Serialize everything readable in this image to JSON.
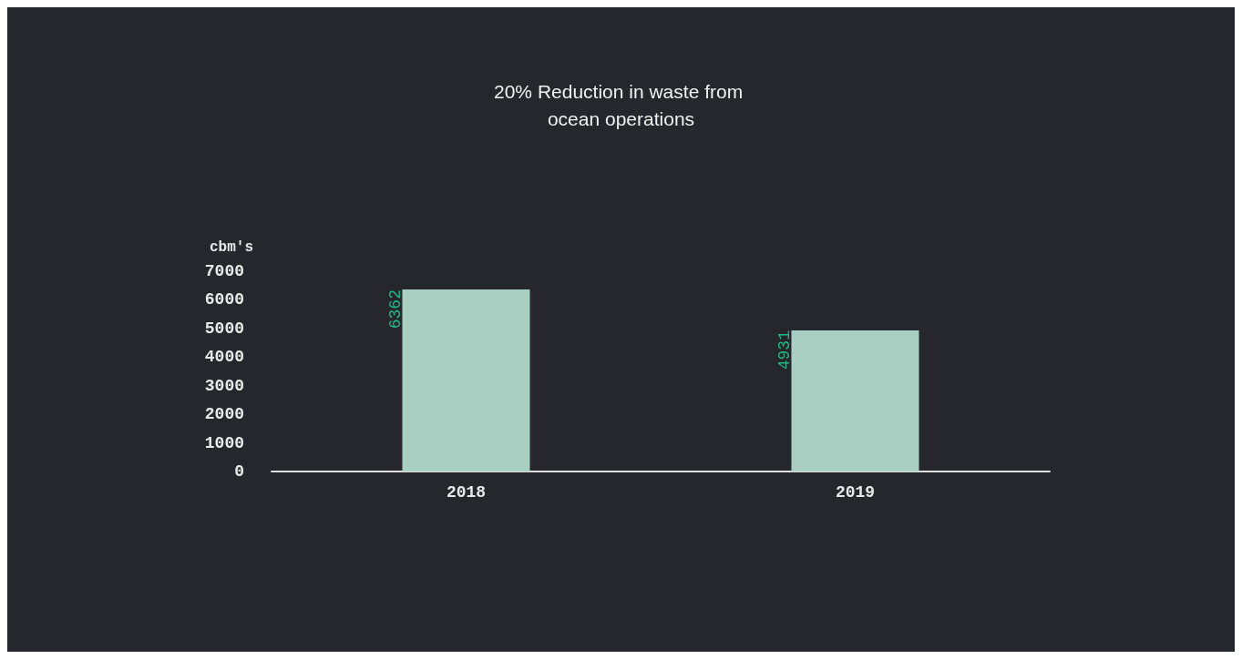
{
  "chart_data": {
    "type": "bar",
    "title": "20% Reduction in waste from ocean operations",
    "ylabel": "cbm's",
    "categories": [
      "2018",
      "2019"
    ],
    "values": [
      6362,
      4931
    ],
    "color": "#a9cfc2",
    "ylim": [
      0,
      7000
    ],
    "yticks": [
      0,
      1000,
      2000,
      3000,
      4000,
      5000,
      6000,
      7000
    ],
    "grid": false,
    "data_labels": true
  }
}
